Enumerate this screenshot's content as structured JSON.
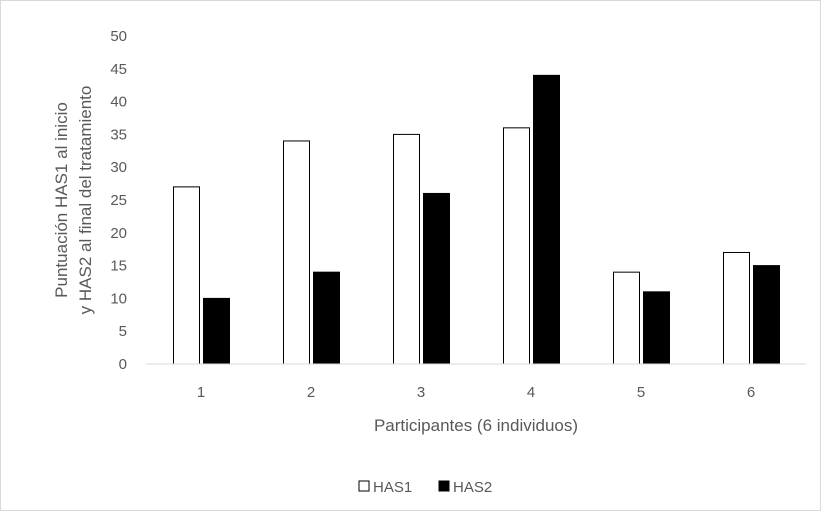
{
  "chart_data": {
    "type": "bar",
    "categories": [
      "1",
      "2",
      "3",
      "4",
      "5",
      "6"
    ],
    "series": [
      {
        "name": "HAS1",
        "values": [
          27,
          34,
          35,
          36,
          14,
          17
        ],
        "fill": "#ffffff",
        "stroke": "#000000"
      },
      {
        "name": "HAS2",
        "values": [
          10,
          14,
          26,
          44,
          11,
          15
        ],
        "fill": "#000000",
        "stroke": "#000000"
      }
    ],
    "xlabel": "Participantes (6 individuos)",
    "ylabel_lines": [
      "Puntuación HAS1 al inicio",
      "y HAS2 al final del tratamiento"
    ],
    "ylim": [
      0,
      50
    ],
    "yticks": [
      0,
      5,
      10,
      15,
      20,
      25,
      30,
      35,
      40,
      45,
      50
    ],
    "grid": false,
    "legend_position": "bottom"
  }
}
